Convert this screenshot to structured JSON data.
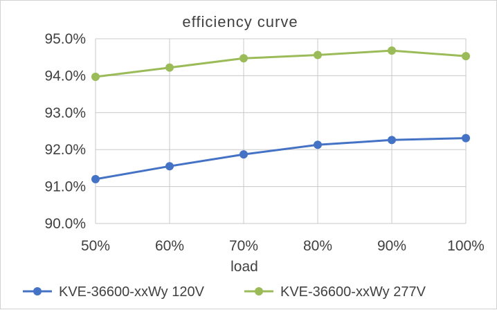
{
  "chart_data": {
    "type": "line",
    "title": "efficiency curve",
    "xlabel": "load",
    "ylabel": "",
    "categories": [
      "50%",
      "60%",
      "70%",
      "80%",
      "90%",
      "100%"
    ],
    "y_ticks": [
      "90.0%",
      "91.0%",
      "92.0%",
      "93.0%",
      "94.0%",
      "95.0%"
    ],
    "ylim": [
      90,
      95
    ],
    "grid": true,
    "legend_position": "bottom",
    "series": [
      {
        "name": "KVE-36600-xxWy 120V",
        "color": "#4472c4",
        "values": [
          91.2,
          91.55,
          91.87,
          92.13,
          92.26,
          92.31
        ]
      },
      {
        "name": "KVE-36600-xxWy 277V",
        "color": "#9bbb59",
        "values": [
          93.97,
          94.22,
          94.47,
          94.56,
          94.68,
          94.53
        ]
      }
    ]
  }
}
